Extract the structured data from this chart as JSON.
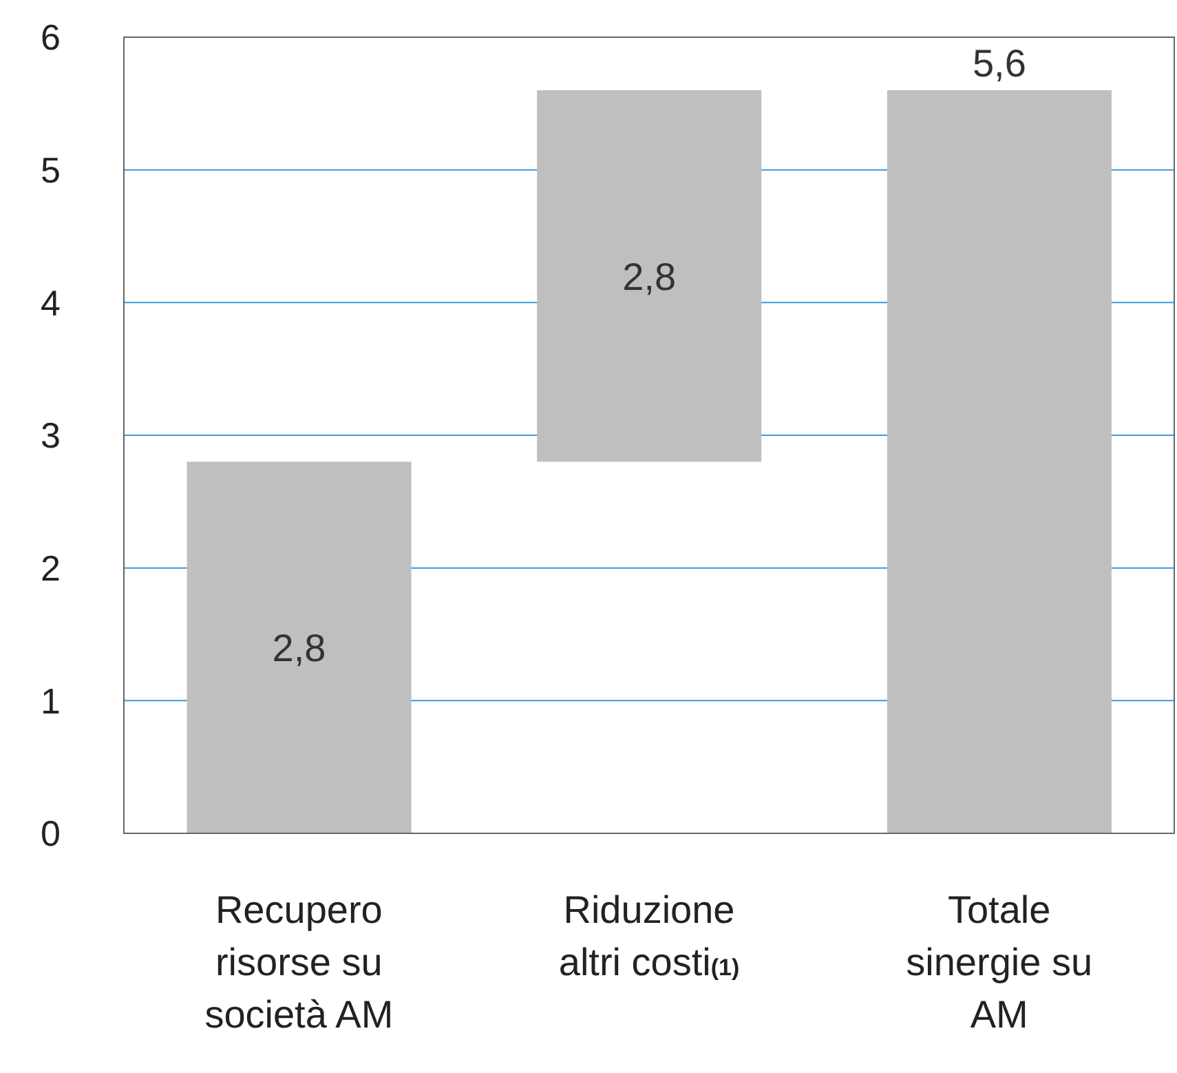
{
  "chart_data": {
    "type": "bar",
    "categories": [
      "Recupero risorse su società AM",
      "Riduzione altri costi(1)",
      "Totale sinergie su AM"
    ],
    "values": [
      2.8,
      2.8,
      5.6
    ],
    "base": [
      0,
      2.8,
      0
    ],
    "color": "#bfbfbf",
    "value_labels": [
      "2,8",
      "2,8",
      "5,6"
    ],
    "ylim": [
      0,
      6
    ],
    "yticks": [
      0,
      1,
      2,
      3,
      4,
      5,
      6
    ],
    "grid": "y"
  }
}
